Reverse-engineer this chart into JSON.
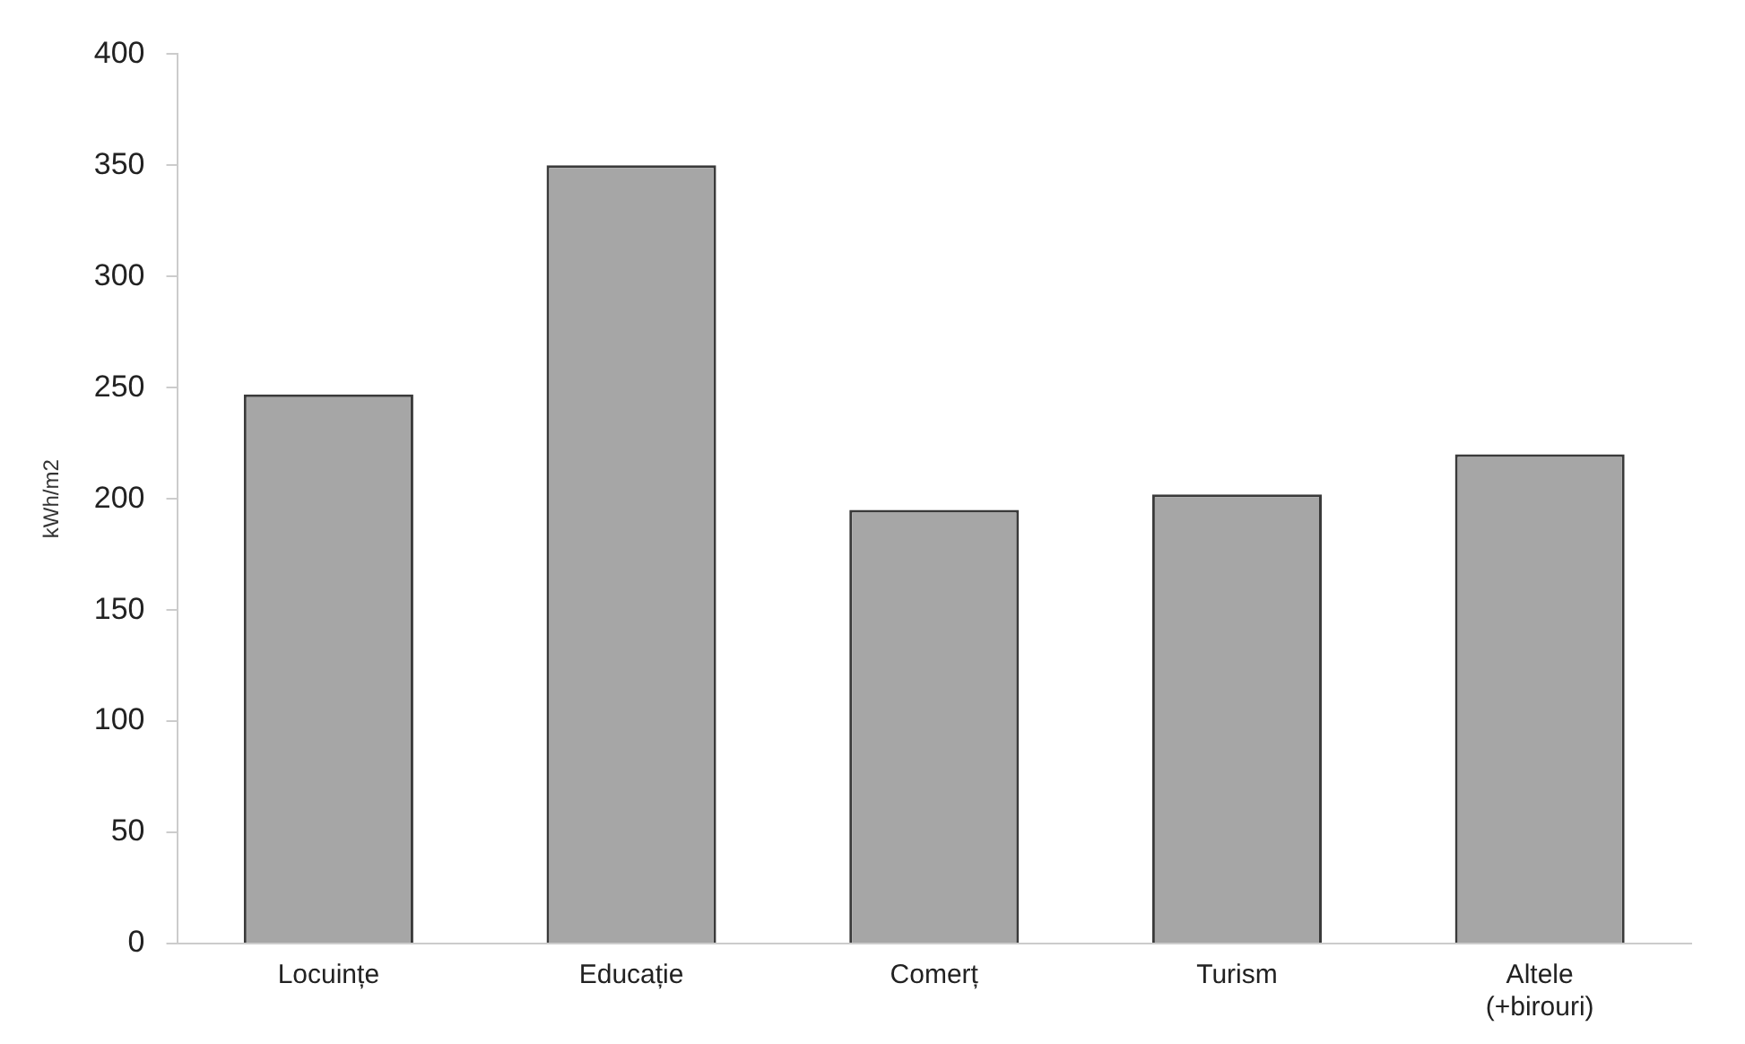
{
  "chart_data": {
    "type": "bar",
    "ylabel": "kWh/m2",
    "categories": [
      "Locuințe",
      "Educație",
      "Comerț",
      "Turism",
      "Altele\n(+birouri)"
    ],
    "values": [
      247,
      350,
      195,
      202,
      220
    ],
    "color": "#a6a6a6",
    "ylim": [
      0,
      400
    ],
    "yticks": [
      0,
      50,
      100,
      150,
      200,
      250,
      300,
      350,
      400
    ],
    "grid": false,
    "legend": false
  }
}
